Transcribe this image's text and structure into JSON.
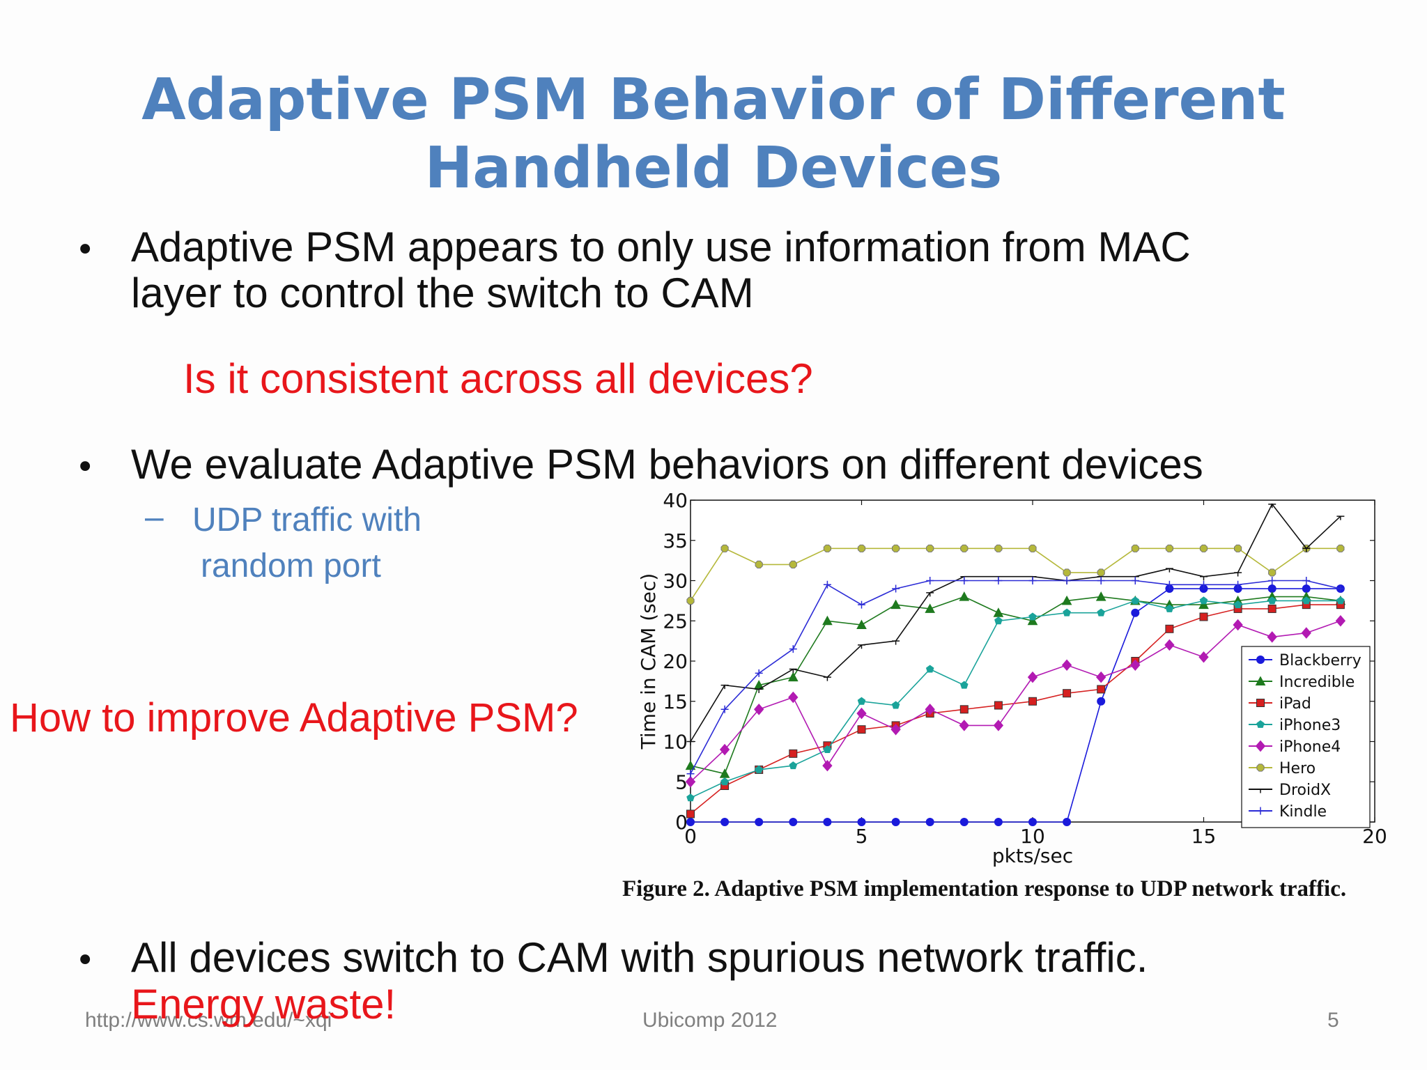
{
  "slide": {
    "title_lines": [
      "Adaptive PSM Behavior of Different",
      "Handheld Devices"
    ],
    "bullets": [
      {
        "lines": [
          "Adaptive PSM appears to only use information from MAC",
          "layer to control the switch to CAM"
        ]
      },
      {
        "lines": [
          "We evaluate Adaptive PSM behaviors on different devices"
        ]
      },
      {
        "lines": [
          "All devices switch to CAM with spurious network traffic."
        ]
      }
    ],
    "question1": "Is it consistent across all devices?",
    "sub_bullet_dash": "–",
    "sub_bullet_lines": [
      "UDP traffic with",
      "random port"
    ],
    "question2": "How to improve Adaptive PSM?",
    "energy_waste": "Energy waste!",
    "footer": {
      "url": "http://www.cs.wm.edu/~xqi",
      "venue": "Ubicomp 2012",
      "page": "5"
    },
    "caption": "Figure 2.  Adaptive PSM implementation response to UDP network traffic.",
    "colors": {
      "title": "#4f81bd",
      "red": "#e8161b",
      "body": "#111111"
    }
  },
  "chart_data": {
    "type": "line",
    "xlabel": "pkts/sec",
    "ylabel": "Time in CAM (sec)",
    "xlim": [
      0,
      20
    ],
    "ylim": [
      0,
      40
    ],
    "xticks": [
      0,
      5,
      10,
      15,
      20
    ],
    "yticks": [
      0,
      5,
      10,
      15,
      20,
      25,
      30,
      35,
      40
    ],
    "legend_position": "lower-right",
    "x": [
      0,
      1,
      2,
      3,
      4,
      5,
      6,
      7,
      8,
      9,
      10,
      11,
      12,
      13,
      14,
      15,
      16,
      17,
      18,
      19
    ],
    "series": [
      {
        "name": "Blackberry",
        "color": "#1a1adb",
        "marker": "circle",
        "values": [
          0,
          0,
          0,
          0,
          0,
          0,
          0,
          0,
          0,
          0,
          0,
          0,
          15,
          26,
          29,
          29,
          29,
          29,
          29,
          29
        ]
      },
      {
        "name": "Incredible",
        "color": "#1e7a1e",
        "marker": "triangle",
        "values": [
          7,
          6,
          17,
          18,
          25,
          24.5,
          27,
          26.5,
          28,
          26,
          25,
          27.5,
          28,
          27.5,
          27,
          27,
          27.5,
          28,
          28,
          27.5
        ]
      },
      {
        "name": "iPad",
        "color": "#d62020",
        "marker": "square",
        "values": [
          1,
          4.5,
          6.5,
          8.5,
          9.5,
          11.5,
          12,
          13.5,
          14,
          14.5,
          15,
          16,
          16.5,
          20,
          24,
          25.5,
          26.5,
          26.5,
          27,
          27
        ]
      },
      {
        "name": "iPhone3",
        "color": "#1aa39a",
        "marker": "pentagon",
        "values": [
          3,
          5,
          6.5,
          7,
          9,
          15,
          14.5,
          19,
          17,
          25,
          25.5,
          26,
          26,
          27.5,
          26.5,
          27.5,
          27,
          27.5,
          27.5,
          27.5
        ]
      },
      {
        "name": "iPhone4",
        "color": "#b21ab2",
        "marker": "diamond",
        "values": [
          5,
          9,
          14,
          15.5,
          7,
          13.5,
          11.5,
          14,
          12,
          12,
          18,
          19.5,
          18,
          19.5,
          22,
          20.5,
          24.5,
          23,
          23.5,
          25
        ]
      },
      {
        "name": "Hero",
        "color": "#b5b83a",
        "marker": "octagon",
        "values": [
          27.5,
          34,
          32,
          32,
          34,
          34,
          34,
          34,
          34,
          34,
          34,
          31,
          31,
          34,
          34,
          34,
          34,
          31,
          34,
          34
        ]
      },
      {
        "name": "DroidX",
        "color": "#111111",
        "marker": "tri_down",
        "values": [
          10,
          17,
          16.5,
          19,
          18,
          22,
          22.5,
          28.5,
          30.5,
          30.5,
          30.5,
          30,
          30.5,
          30.5,
          31.5,
          30.5,
          31,
          39.5,
          34,
          38
        ]
      },
      {
        "name": "Kindle",
        "color": "#2b2bd6",
        "marker": "plus",
        "values": [
          6,
          14,
          18.5,
          21.5,
          29.5,
          27,
          29,
          30,
          30,
          30,
          30,
          30,
          30,
          30,
          29.5,
          29.5,
          29.5,
          30,
          30,
          29
        ]
      }
    ]
  }
}
